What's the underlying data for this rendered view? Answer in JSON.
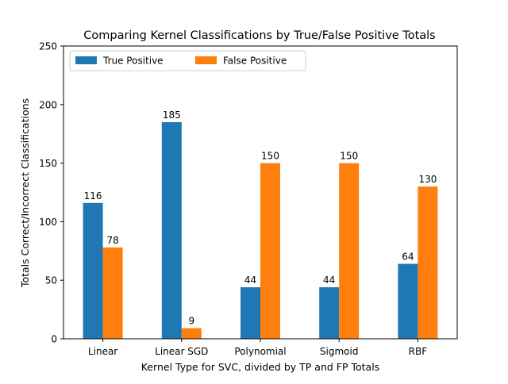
{
  "chart_data": {
    "type": "bar",
    "title": "Comparing Kernel Classifications by True/False Positive Totals",
    "xlabel": "Kernel Type for SVC, divided by TP and FP Totals",
    "ylabel": "Totals Correct/Incorrect Classifications",
    "categories": [
      "Linear",
      "Linear SGD",
      "Polynomial",
      "Sigmoid",
      "RBF"
    ],
    "series": [
      {
        "name": "True Positive",
        "values": [
          116,
          185,
          44,
          44,
          64
        ],
        "color": "#1f77b4"
      },
      {
        "name": "False Positive",
        "values": [
          78,
          9,
          150,
          150,
          130
        ],
        "color": "#ff7f0e"
      }
    ],
    "ylim": [
      0,
      250
    ],
    "yticks": [
      0,
      50,
      100,
      150,
      200,
      250
    ],
    "grid": false,
    "legend_position": "top-left",
    "legend_columns": 2,
    "data_labels": true
  }
}
